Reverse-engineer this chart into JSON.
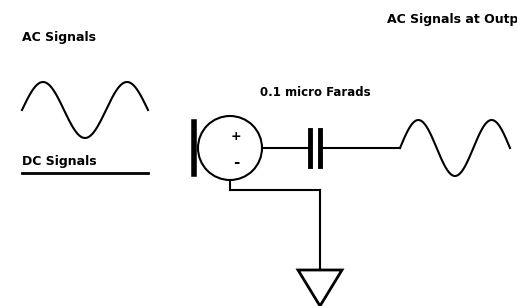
{
  "bg_color": "#ffffff",
  "line_color": "#000000",
  "text_color": "#000000",
  "title_ac_input": "AC Signals",
  "title_dc": "DC Signals",
  "title_ac_output": "AC Signals at Output",
  "title_cap": "0.1 micro Farads",
  "plus_label": "+",
  "minus_label": "-",
  "figsize": [
    5.17,
    3.06
  ],
  "dpi": 100
}
